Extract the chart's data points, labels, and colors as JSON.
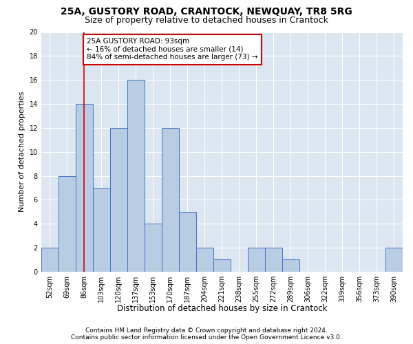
{
  "title1": "25A, GUSTORY ROAD, CRANTOCK, NEWQUAY, TR8 5RG",
  "title2": "Size of property relative to detached houses in Crantock",
  "xlabel": "Distribution of detached houses by size in Crantock",
  "ylabel": "Number of detached properties",
  "categories": [
    "52sqm",
    "69sqm",
    "86sqm",
    "103sqm",
    "120sqm",
    "137sqm",
    "153sqm",
    "170sqm",
    "187sqm",
    "204sqm",
    "221sqm",
    "238sqm",
    "255sqm",
    "272sqm",
    "289sqm",
    "306sqm",
    "322sqm",
    "339sqm",
    "356sqm",
    "373sqm",
    "390sqm"
  ],
  "values": [
    2,
    8,
    14,
    7,
    12,
    16,
    4,
    12,
    5,
    2,
    1,
    0,
    2,
    2,
    1,
    0,
    0,
    0,
    0,
    0,
    2
  ],
  "bar_color": "#b8cce4",
  "bar_edge_color": "#4472c4",
  "bg_color": "#dce6f1",
  "grid_color": "#ffffff",
  "annotation_line1": "25A GUSTORY ROAD: 93sqm",
  "annotation_line2": "← 16% of detached houses are smaller (14)",
  "annotation_line3": "84% of semi-detached houses are larger (73) →",
  "annotation_box_color": "#ffffff",
  "annotation_box_edge": "#cc0000",
  "vline_x": 2.0,
  "vline_color": "#cc0000",
  "ylim": [
    0,
    20
  ],
  "yticks": [
    0,
    2,
    4,
    6,
    8,
    10,
    12,
    14,
    16,
    18,
    20
  ],
  "footer1": "Contains HM Land Registry data © Crown copyright and database right 2024.",
  "footer2": "Contains public sector information licensed under the Open Government Licence v3.0.",
  "title1_fontsize": 10,
  "title2_fontsize": 9,
  "tick_fontsize": 7,
  "ylabel_fontsize": 8,
  "xlabel_fontsize": 8.5,
  "annotation_fontsize": 7.5,
  "footer_fontsize": 6.5
}
